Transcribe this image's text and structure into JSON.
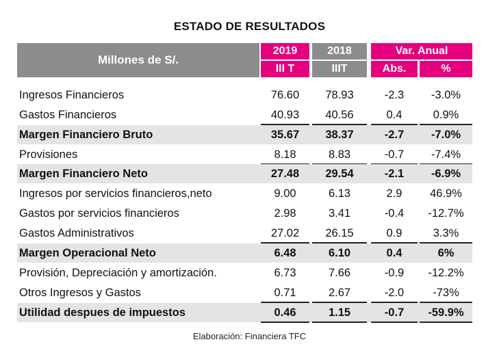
{
  "title": "ESTADO DE RESULTADOS",
  "header": {
    "units_label": "Millones de S/.",
    "col_2019": {
      "year": "2019",
      "period": "III T"
    },
    "col_2018": {
      "year": "2018",
      "period": "IIIT"
    },
    "var_anual": {
      "label": "Var. Anual",
      "abs": "Abs.",
      "pct": "%"
    }
  },
  "colors": {
    "gray_header": "#8c8c8c",
    "pink_header": "#e6007e",
    "highlight_row": "#e4e4e4"
  },
  "rows": [
    {
      "label": "Ingresos Financieros",
      "v2019": "76.60",
      "v2018": "78.93",
      "abs": "-2.3",
      "pct": "-3.0%",
      "bold": false
    },
    {
      "label": "Gastos Financieros",
      "v2019": "40.93",
      "v2018": "40.56",
      "abs": "0.4",
      "pct": "0.9%",
      "bold": false
    },
    {
      "label": "Margen Financiero Bruto",
      "v2019": "35.67",
      "v2018": "38.37",
      "abs": "-2.7",
      "pct": "-7.0%",
      "bold": true
    },
    {
      "label": "Provisiones",
      "v2019": "8.18",
      "v2018": "8.83",
      "abs": "-0.7",
      "pct": "-7.4%",
      "bold": false
    },
    {
      "label": "Margen Financiero Neto",
      "v2019": "27.48",
      "v2018": "29.54",
      "abs": "-2.1",
      "pct": "-6.9%",
      "bold": true
    },
    {
      "label": "Ingresos por servicios financieros,neto",
      "v2019": "9.00",
      "v2018": "6.13",
      "abs": "2.9",
      "pct": "46.9%",
      "bold": false
    },
    {
      "label": "Gastos por servicios financieros",
      "v2019": "2.98",
      "v2018": "3.41",
      "abs": "-0.4",
      "pct": "-12.7%",
      "bold": false
    },
    {
      "label": "Gastos Administrativos",
      "v2019": "27.02",
      "v2018": "26.15",
      "abs": "0.9",
      "pct": "3.3%",
      "bold": false
    },
    {
      "label": "Margen Operacional Neto",
      "v2019": "6.48",
      "v2018": "6.10",
      "abs": "0.4",
      "pct": "6%",
      "bold": true
    },
    {
      "label": "Provisión, Depreciación y amortización.",
      "v2019": "6.73",
      "v2018": "7.66",
      "abs": "-0.9",
      "pct": "-12.2%",
      "bold": false
    },
    {
      "label": "Otros Ingresos  y Gastos",
      "v2019": "0.71",
      "v2018": "2.67",
      "abs": "-2.0",
      "pct": "-73%",
      "bold": false
    },
    {
      "label": "Utilidad despues de impuestos",
      "v2019": "0.46",
      "v2018": "1.15",
      "abs": "-0.7",
      "pct": "-59.9%",
      "bold": true
    }
  ],
  "footer": "Elaboración: Financiera TFC"
}
